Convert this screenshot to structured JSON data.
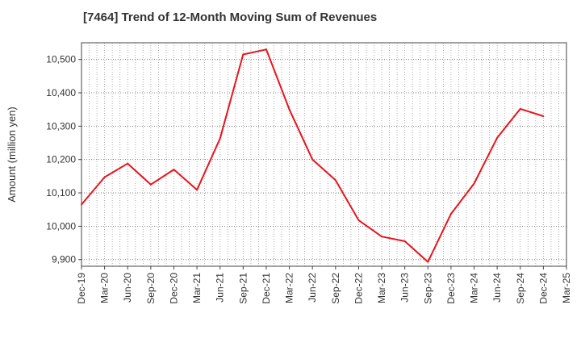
{
  "chart_data": {
    "type": "line",
    "title": "[7464]  Trend of 12-Month Moving Sum of Revenues",
    "xlabel": "",
    "ylabel": "Amount (million yen)",
    "ylim": [
      9880,
      10550
    ],
    "y_ticks": [
      9900,
      10000,
      10100,
      10200,
      10300,
      10400,
      10500
    ],
    "y_tick_labels": [
      "9,900",
      "10,000",
      "10,100",
      "10,200",
      "10,300",
      "10,400",
      "10,500"
    ],
    "x_tick_labels": [
      "Dec-19",
      "Mar-20",
      "Jun-20",
      "Sep-20",
      "Dec-20",
      "Mar-21",
      "Jun-21",
      "Sep-21",
      "Dec-21",
      "Mar-22",
      "Jun-22",
      "Sep-22",
      "Dec-22",
      "Mar-23",
      "Jun-23",
      "Sep-23",
      "Dec-23",
      "Mar-24",
      "Jun-24",
      "Sep-24",
      "Dec-24",
      "Mar-25"
    ],
    "grid": true,
    "line_color": "#e8141c",
    "series": [
      {
        "x": [
          "Dec-19",
          "Mar-20",
          "Jun-20",
          "Sep-20",
          "Dec-20",
          "Mar-21",
          "Jun-21",
          "Sep-21",
          "Dec-21",
          "Mar-22",
          "Jun-22",
          "Sep-22",
          "Dec-22",
          "Mar-23",
          "Jun-23",
          "Sep-23",
          "Dec-23",
          "Mar-24",
          "Jun-24",
          "Sep-24",
          "Dec-24"
        ],
        "values": [
          10065,
          10147,
          10188,
          10125,
          10170,
          10109,
          10263,
          10515,
          10530,
          10350,
          10200,
          10138,
          10018,
          9969,
          9955,
          9893,
          10037,
          10128,
          10265,
          10352,
          10330
        ]
      }
    ]
  }
}
